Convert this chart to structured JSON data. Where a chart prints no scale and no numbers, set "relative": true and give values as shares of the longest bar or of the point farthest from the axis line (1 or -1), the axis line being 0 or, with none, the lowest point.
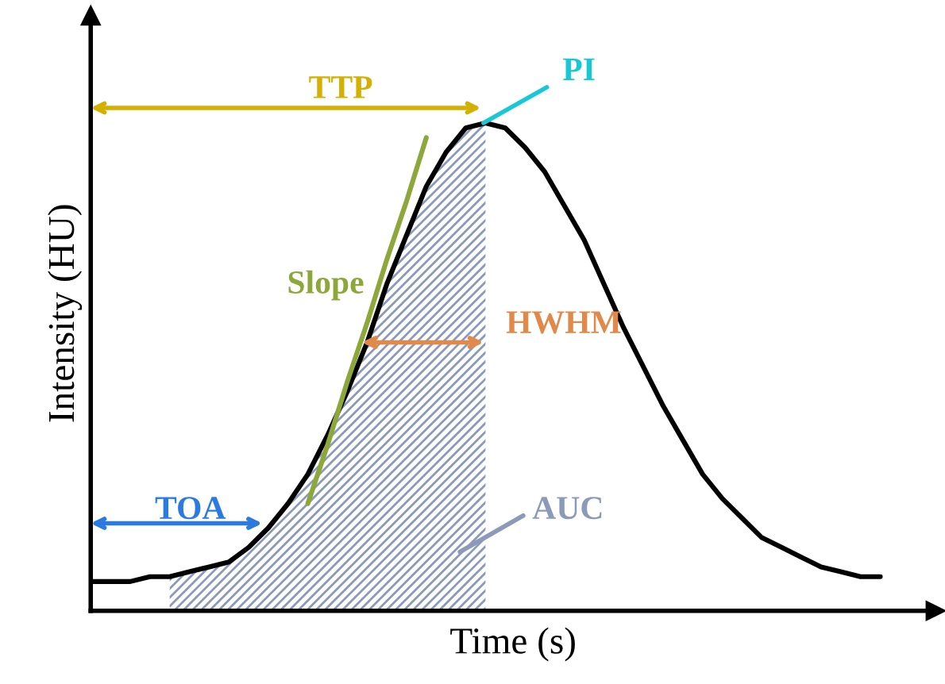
{
  "chart_data": {
    "type": "line",
    "relative": true,
    "xlabel": "Time (s)",
    "ylabel": "Intensity (HU)",
    "annotations": [
      "TTP",
      "PI",
      "Slope",
      "HWHM",
      "TOA",
      "AUC"
    ],
    "categories": [
      null,
      null,
      null,
      null,
      null,
      null,
      null,
      null,
      null,
      null,
      null,
      null,
      null,
      null,
      null,
      null,
      null,
      null,
      null,
      null,
      null,
      null,
      null,
      null,
      null,
      null,
      null,
      null,
      null,
      null,
      null,
      null,
      null,
      null,
      null,
      null,
      null,
      null,
      null,
      null,
      null
    ],
    "series": [
      {
        "type": "area",
        "color": "#8a9ab8",
        "values": [
          null,
          null,
          null,
          null,
          0.07,
          0.08,
          0.09,
          0.1,
          0.13,
          0.17,
          0.22,
          0.28,
          0.36,
          0.45,
          0.55,
          0.67,
          0.77,
          0.87,
          0.94,
          0.99,
          1.0,
          null,
          null,
          null,
          null,
          null,
          null,
          null,
          null,
          null,
          null,
          null,
          null,
          null,
          null,
          null,
          null,
          null,
          null,
          null,
          null
        ]
      },
      {
        "color": "#000000",
        "values": [
          0.06,
          0.06,
          0.06,
          0.07,
          0.07,
          0.08,
          0.09,
          0.1,
          0.13,
          0.17,
          0.22,
          0.28,
          0.36,
          0.45,
          0.55,
          0.67,
          0.77,
          0.87,
          0.94,
          0.99,
          1.0,
          0.99,
          0.95,
          0.9,
          0.83,
          0.76,
          0.67,
          0.58,
          0.5,
          0.42,
          0.35,
          0.28,
          0.23,
          0.19,
          0.15,
          0.13,
          0.11,
          0.09,
          0.08,
          0.07,
          0.07
        ]
      },
      {
        "type": "line",
        "color": "#8ca83a",
        "values": [
          null,
          null,
          null,
          null,
          null,
          null,
          null,
          null,
          null,
          null,
          null,
          0.22,
          0.34,
          0.47,
          0.59,
          0.72,
          0.84,
          0.97,
          null,
          null,
          null,
          null,
          null,
          null,
          null,
          null,
          null,
          null,
          null,
          null,
          null,
          null,
          null,
          null,
          null,
          null,
          null,
          null,
          null,
          null,
          null
        ]
      }
    ]
  }
}
